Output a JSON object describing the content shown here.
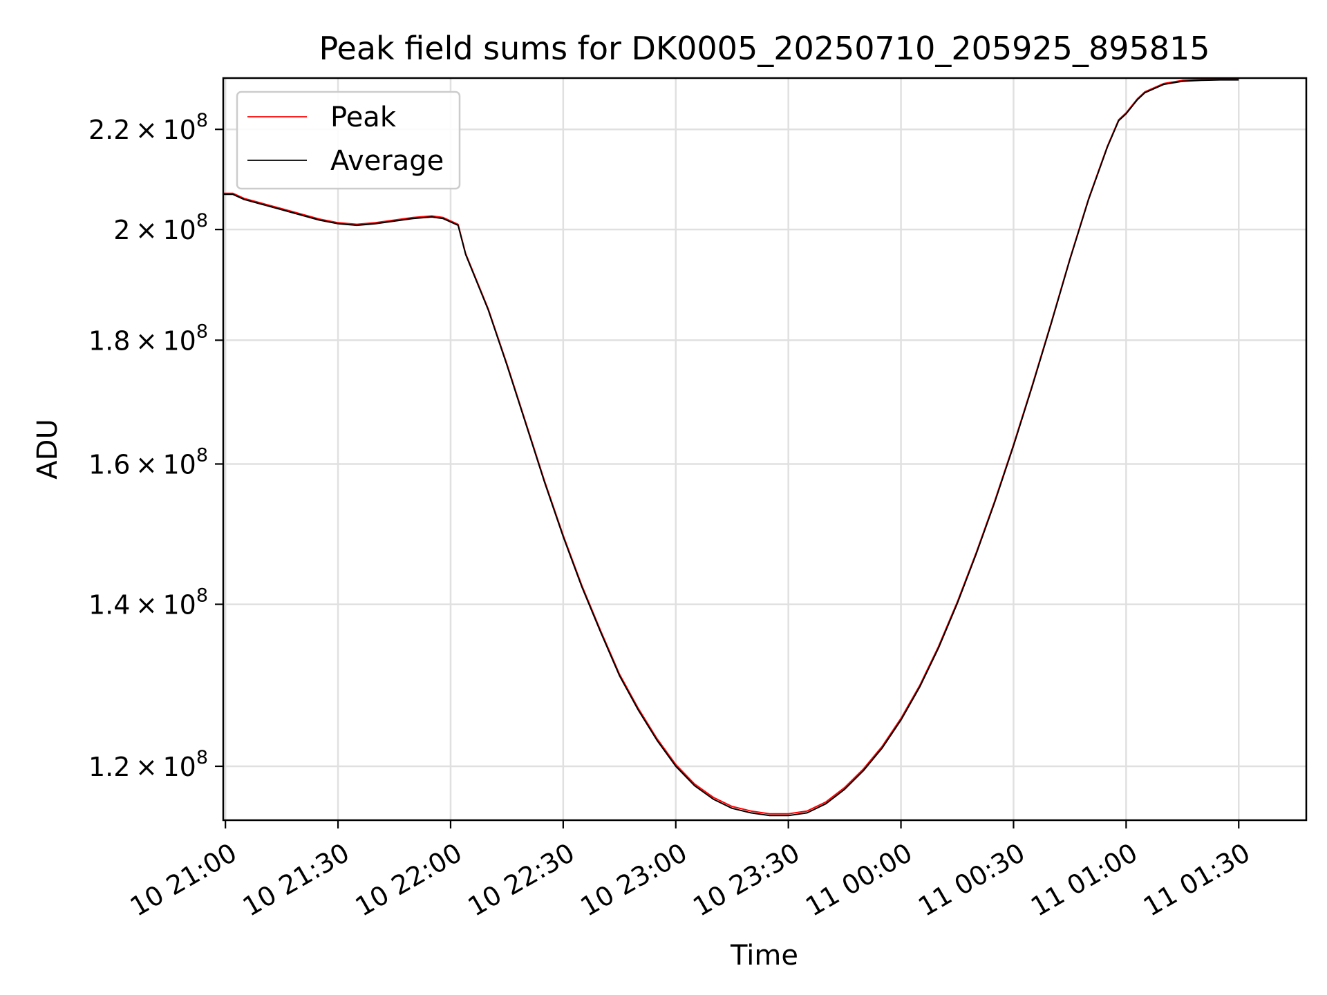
{
  "chart_data": {
    "type": "line",
    "title": "Peak field sums for DK0005_20250710_205925_895815",
    "xlabel": "Time",
    "ylabel": "ADU",
    "y_scale": "log",
    "grid": true,
    "legend_position": "top-left",
    "xlim": [
      "2025-07-10 20:59:25",
      "2025-07-11 01:48:00"
    ],
    "ylim": [
      114000000,
      231000000
    ],
    "x_ticks": [
      {
        "value": "2025-07-10 21:00",
        "label": "10 21:00"
      },
      {
        "value": "2025-07-10 21:30",
        "label": "10 21:30"
      },
      {
        "value": "2025-07-10 22:00",
        "label": "10 22:00"
      },
      {
        "value": "2025-07-10 22:30",
        "label": "10 22:30"
      },
      {
        "value": "2025-07-10 23:00",
        "label": "10 23:00"
      },
      {
        "value": "2025-07-10 23:30",
        "label": "10 23:30"
      },
      {
        "value": "2025-07-11 00:00",
        "label": "11 00:00"
      },
      {
        "value": "2025-07-11 00:30",
        "label": "11 00:30"
      },
      {
        "value": "2025-07-11 01:00",
        "label": "11 01:00"
      },
      {
        "value": "2025-07-11 01:30",
        "label": "11 01:30"
      }
    ],
    "y_ticks": [
      {
        "value": 120000000,
        "mantissa": "1.2",
        "exponent": "8"
      },
      {
        "value": 140000000,
        "mantissa": "1.4",
        "exponent": "8"
      },
      {
        "value": 160000000,
        "mantissa": "1.6",
        "exponent": "8"
      },
      {
        "value": 180000000,
        "mantissa": "1.8",
        "exponent": "8"
      },
      {
        "value": 200000000,
        "mantissa": "2",
        "exponent": "8"
      },
      {
        "value": 220000000,
        "mantissa": "2.2",
        "exponent": "8"
      }
    ],
    "x": [
      "2025-07-10 20:59:25",
      "2025-07-10 21:02:00",
      "2025-07-10 21:05:00",
      "2025-07-10 21:10:00",
      "2025-07-10 21:15:00",
      "2025-07-10 21:20:00",
      "2025-07-10 21:25:00",
      "2025-07-10 21:30:00",
      "2025-07-10 21:35:00",
      "2025-07-10 21:40:00",
      "2025-07-10 21:45:00",
      "2025-07-10 21:50:00",
      "2025-07-10 21:55:00",
      "2025-07-10 21:58:00",
      "2025-07-10 22:02:00",
      "2025-07-10 22:04:00",
      "2025-07-10 22:10:00",
      "2025-07-10 22:15:00",
      "2025-07-10 22:20:00",
      "2025-07-10 22:25:00",
      "2025-07-10 22:30:00",
      "2025-07-10 22:35:00",
      "2025-07-10 22:40:00",
      "2025-07-10 22:45:00",
      "2025-07-10 22:50:00",
      "2025-07-10 22:55:00",
      "2025-07-10 23:00:00",
      "2025-07-10 23:05:00",
      "2025-07-10 23:10:00",
      "2025-07-10 23:15:00",
      "2025-07-10 23:20:00",
      "2025-07-10 23:25:00",
      "2025-07-10 23:30:00",
      "2025-07-10 23:35:00",
      "2025-07-10 23:40:00",
      "2025-07-10 23:45:00",
      "2025-07-10 23:50:00",
      "2025-07-10 23:55:00",
      "2025-07-11 00:00:00",
      "2025-07-11 00:05:00",
      "2025-07-11 00:10:00",
      "2025-07-11 00:15:00",
      "2025-07-11 00:20:00",
      "2025-07-11 00:25:00",
      "2025-07-11 00:30:00",
      "2025-07-11 00:35:00",
      "2025-07-11 00:40:00",
      "2025-07-11 00:45:00",
      "2025-07-11 00:50:00",
      "2025-07-11 00:55:00",
      "2025-07-11 00:58:00",
      "2025-07-11 01:00:00",
      "2025-07-11 01:03:00",
      "2025-07-11 01:05:00",
      "2025-07-11 01:10:00",
      "2025-07-11 01:15:00",
      "2025-07-11 01:20:00",
      "2025-07-11 01:25:00",
      "2025-07-11 01:30:00"
    ],
    "series": [
      {
        "name": "Peak",
        "color": "#ff0000",
        "values": [
          207000000,
          207000000,
          206000000,
          205000000,
          204000000,
          203000000,
          202000000,
          201300000,
          201000000,
          201300000,
          201800000,
          202300000,
          202600000,
          202300000,
          201000000,
          195500000,
          185500000,
          176000000,
          166500000,
          157500000,
          149500000,
          142500000,
          136500000,
          131000000,
          126800000,
          123200000,
          120200000,
          118000000,
          116500000,
          115500000,
          115000000,
          114700000,
          114700000,
          115000000,
          116000000,
          117600000,
          119700000,
          122300000,
          125600000,
          129600000,
          134500000,
          140300000,
          147000000,
          154500000,
          163000000,
          172500000,
          183000000,
          194500000,
          206000000,
          216500000,
          222000000,
          223500000,
          226500000,
          228000000,
          229800000,
          230500000,
          230700000,
          230800000,
          230800000
        ]
      },
      {
        "name": "Average",
        "color": "#000000",
        "values": [
          206800000,
          206800000,
          205800000,
          204800000,
          203800000,
          202800000,
          201800000,
          201100000,
          200800000,
          201100000,
          201600000,
          202100000,
          202400000,
          202100000,
          200800000,
          195300000,
          185300000,
          175800000,
          166300000,
          157300000,
          149300000,
          142300000,
          136300000,
          130800000,
          126600000,
          123000000,
          120000000,
          117800000,
          116300000,
          115300000,
          114800000,
          114500000,
          114500000,
          114800000,
          115800000,
          117400000,
          119500000,
          122100000,
          125400000,
          129400000,
          134300000,
          140100000,
          146800000,
          154300000,
          162800000,
          172300000,
          182800000,
          194300000,
          205800000,
          216300000,
          221800000,
          223300000,
          226300000,
          227800000,
          229600000,
          230300000,
          230500000,
          230600000,
          230600000
        ]
      }
    ]
  }
}
